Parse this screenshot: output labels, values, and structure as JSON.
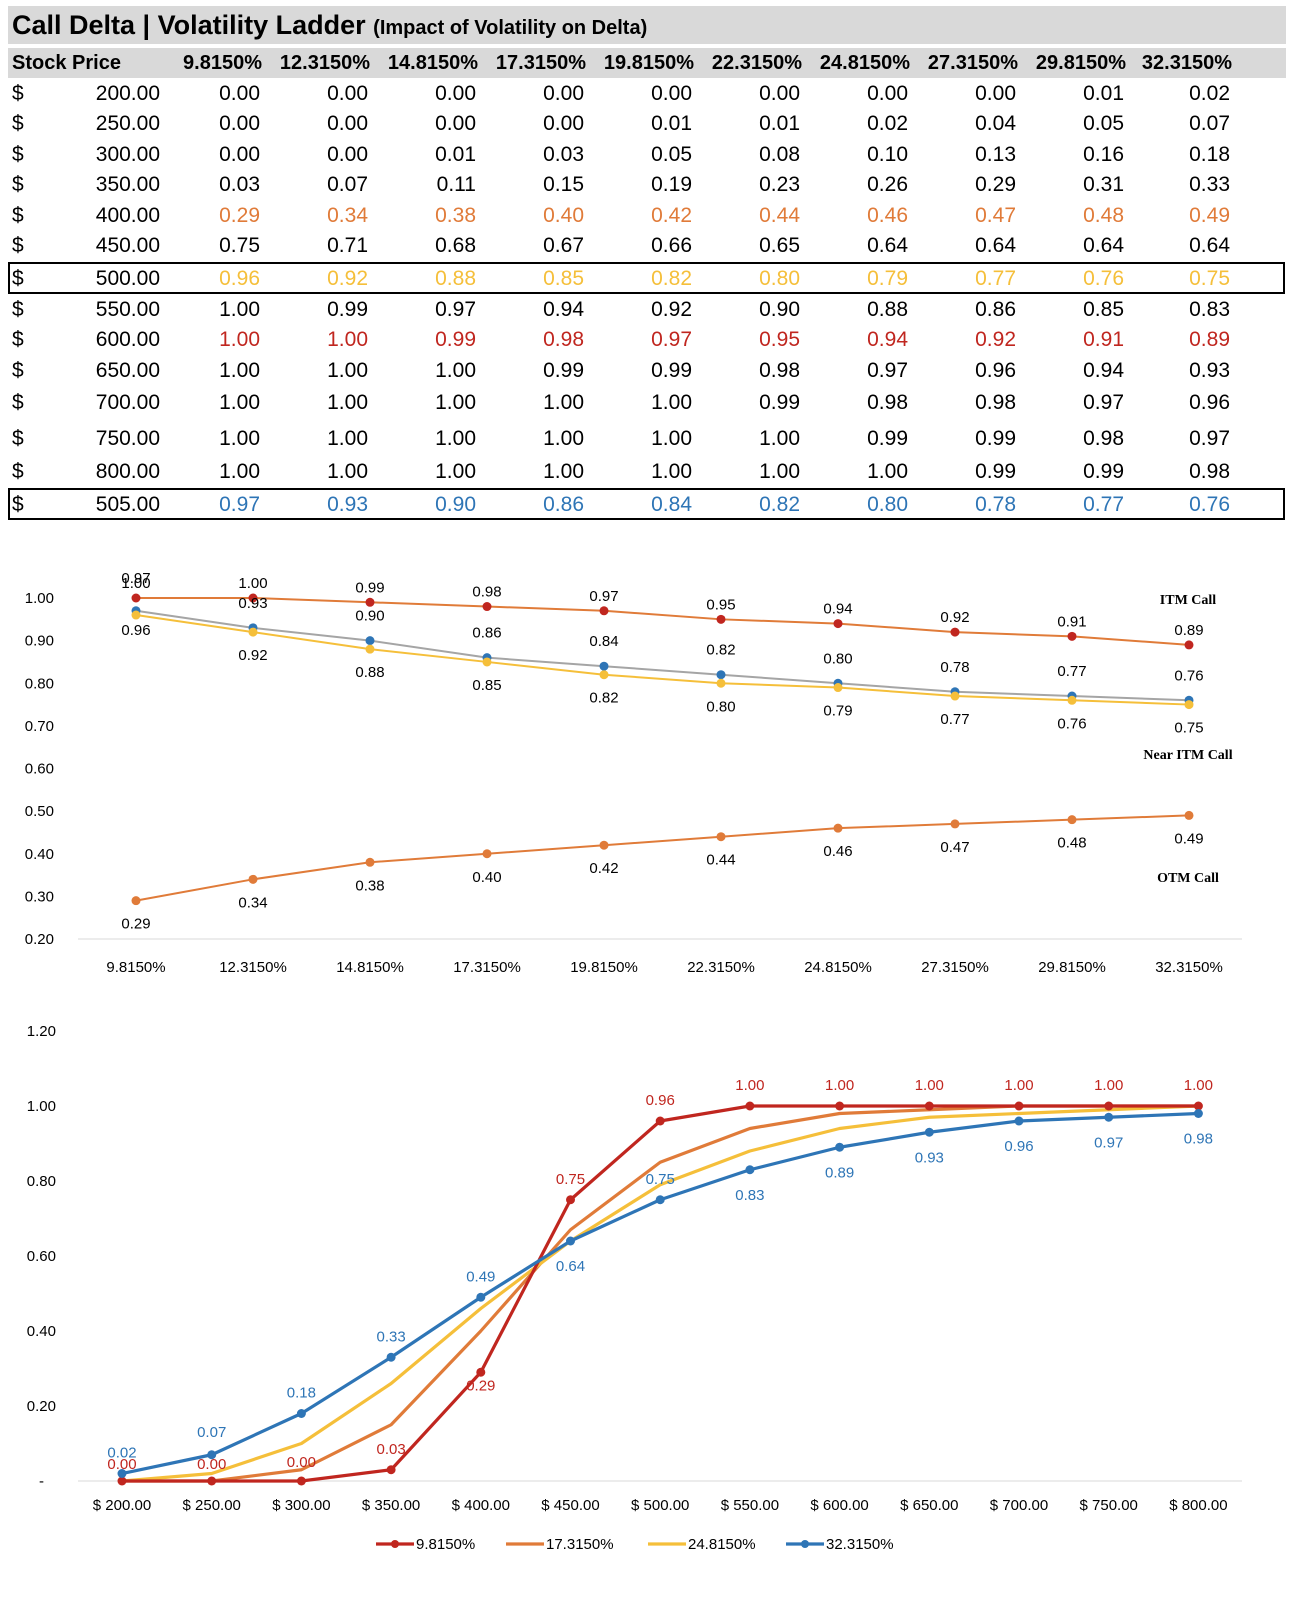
{
  "table": {
    "title": "Call Delta | Volatility Ladder",
    "subtitle": "(Impact of Volatility on Delta)",
    "col_header": "Stock Price",
    "currency": "$",
    "vol_headers": [
      "9.8150%",
      "12.3150%",
      "14.8150%",
      "17.3150%",
      "19.8150%",
      "22.3150%",
      "24.8150%",
      "27.3150%",
      "29.8150%",
      "32.3150%"
    ],
    "rows": [
      {
        "price": "200.00",
        "values": [
          "0.00",
          "0.00",
          "0.00",
          "0.00",
          "0.00",
          "0.00",
          "0.00",
          "0.00",
          "0.01",
          "0.02"
        ],
        "color": "#000000"
      },
      {
        "price": "250.00",
        "values": [
          "0.00",
          "0.00",
          "0.00",
          "0.00",
          "0.01",
          "0.01",
          "0.02",
          "0.04",
          "0.05",
          "0.07"
        ],
        "color": "#000000"
      },
      {
        "price": "300.00",
        "values": [
          "0.00",
          "0.00",
          "0.01",
          "0.03",
          "0.05",
          "0.08",
          "0.10",
          "0.13",
          "0.16",
          "0.18"
        ],
        "color": "#000000"
      },
      {
        "price": "350.00",
        "values": [
          "0.03",
          "0.07",
          "0.11",
          "0.15",
          "0.19",
          "0.23",
          "0.26",
          "0.29",
          "0.31",
          "0.33"
        ],
        "color": "#000000"
      },
      {
        "price": "400.00",
        "values": [
          "0.29",
          "0.34",
          "0.38",
          "0.40",
          "0.42",
          "0.44",
          "0.46",
          "0.47",
          "0.48",
          "0.49"
        ],
        "color": "#e07b39"
      },
      {
        "price": "450.00",
        "values": [
          "0.75",
          "0.71",
          "0.68",
          "0.67",
          "0.66",
          "0.65",
          "0.64",
          "0.64",
          "0.64",
          "0.64"
        ],
        "color": "#000000"
      },
      {
        "price": "500.00",
        "values": [
          "0.96",
          "0.92",
          "0.88",
          "0.85",
          "0.82",
          "0.80",
          "0.79",
          "0.77",
          "0.76",
          "0.75"
        ],
        "color": "#f5bf3a"
      },
      {
        "price": "550.00",
        "values": [
          "1.00",
          "0.99",
          "0.97",
          "0.94",
          "0.92",
          "0.90",
          "0.88",
          "0.86",
          "0.85",
          "0.83"
        ],
        "color": "#000000"
      },
      {
        "price": "600.00",
        "values": [
          "1.00",
          "1.00",
          "0.99",
          "0.98",
          "0.97",
          "0.95",
          "0.94",
          "0.92",
          "0.91",
          "0.89"
        ],
        "color": "#c0261f"
      },
      {
        "price": "650.00",
        "values": [
          "1.00",
          "1.00",
          "1.00",
          "0.99",
          "0.99",
          "0.98",
          "0.97",
          "0.96",
          "0.94",
          "0.93"
        ],
        "color": "#000000"
      },
      {
        "price": "700.00",
        "values": [
          "1.00",
          "1.00",
          "1.00",
          "1.00",
          "1.00",
          "0.99",
          "0.98",
          "0.98",
          "0.97",
          "0.96"
        ],
        "color": "#000000"
      },
      {
        "price": "750.00",
        "values": [
          "1.00",
          "1.00",
          "1.00",
          "1.00",
          "1.00",
          "1.00",
          "0.99",
          "0.99",
          "0.98",
          "0.97"
        ],
        "color": "#000000"
      },
      {
        "price": "800.00",
        "values": [
          "1.00",
          "1.00",
          "1.00",
          "1.00",
          "1.00",
          "1.00",
          "1.00",
          "0.99",
          "0.99",
          "0.98"
        ],
        "color": "#000000"
      },
      {
        "price": "505.00",
        "values": [
          "0.97",
          "0.93",
          "0.90",
          "0.86",
          "0.84",
          "0.82",
          "0.80",
          "0.78",
          "0.77",
          "0.76"
        ],
        "color": "#2e75b6"
      }
    ]
  },
  "chart_data": [
    {
      "type": "line",
      "x": [
        "9.8150%",
        "12.3150%",
        "14.8150%",
        "17.3150%",
        "19.8150%",
        "22.3150%",
        "24.8150%",
        "27.3150%",
        "29.8150%",
        "32.3150%"
      ],
      "y_ticks": [
        "1.00",
        "0.90",
        "0.80",
        "0.70",
        "0.60",
        "0.50",
        "0.40",
        "0.30",
        "0.20"
      ],
      "ylim": [
        0.2,
        1.0
      ],
      "grid": false,
      "annotations": [
        "ITM Call",
        "Near ITM Call",
        "OTM Call"
      ],
      "series": [
        {
          "name": "",
          "color": "#c0261f",
          "line": "#e07b39",
          "values": [
            1.0,
            1.0,
            0.99,
            0.98,
            0.97,
            0.95,
            0.94,
            0.92,
            0.91,
            0.89
          ],
          "labels": [
            "1.00",
            "1.00",
            "0.99",
            "0.98",
            "0.97",
            "0.95",
            "0.94",
            "0.92",
            "0.91",
            "0.89"
          ]
        },
        {
          "name": "",
          "color": "#2e75b6",
          "line": "#a5a5a5",
          "values": [
            0.97,
            0.93,
            0.9,
            0.86,
            0.84,
            0.82,
            0.8,
            0.78,
            0.77,
            0.76
          ],
          "labels": [
            "0.97",
            "0.93",
            "0.90",
            "0.86",
            "0.84",
            "0.82",
            "0.80",
            "0.78",
            "0.77",
            "0.76"
          ]
        },
        {
          "name": "",
          "color": "#f5bf3a",
          "line": "#f5bf3a",
          "values": [
            0.96,
            0.92,
            0.88,
            0.85,
            0.82,
            0.8,
            0.79,
            0.77,
            0.76,
            0.75
          ],
          "labels": [
            "0.96",
            "0.92",
            "0.88",
            "0.85",
            "0.82",
            "0.80",
            "0.79",
            "0.77",
            "0.76",
            "0.75"
          ]
        },
        {
          "name": "",
          "color": "#e07b39",
          "line": "#e07b39",
          "values": [
            0.29,
            0.34,
            0.38,
            0.4,
            0.42,
            0.44,
            0.46,
            0.47,
            0.48,
            0.49
          ],
          "labels": [
            "0.29",
            "0.34",
            "0.38",
            "0.40",
            "0.42",
            "0.44",
            "0.46",
            "0.47",
            "0.48",
            "0.49"
          ]
        }
      ]
    },
    {
      "type": "line",
      "x": [
        "$ 200.00",
        "$ 250.00",
        "$ 300.00",
        "$ 350.00",
        "$ 400.00",
        "$ 450.00",
        "$ 500.00",
        "$ 550.00",
        "$ 600.00",
        "$ 650.00",
        "$ 700.00",
        "$ 750.00",
        "$ 800.00"
      ],
      "y_ticks": [
        "1.20",
        "1.00",
        "0.80",
        "0.60",
        "0.40",
        "0.20",
        "-"
      ],
      "ylim": [
        0,
        1.2
      ],
      "grid": false,
      "legend": "bottom",
      "series": [
        {
          "name": "9.8150%",
          "color": "#c0261f",
          "markers": true,
          "values": [
            0.0,
            0.0,
            0.0,
            0.03,
            0.29,
            0.75,
            0.96,
            1.0,
            1.0,
            1.0,
            1.0,
            1.0,
            1.0
          ],
          "labels": [
            "0.00",
            "0.00",
            "0.00",
            "0.03",
            "0.29",
            "0.75",
            "0.96",
            "1.00",
            "1.00",
            "1.00",
            "1.00",
            "1.00",
            "1.00"
          ]
        },
        {
          "name": "17.3150%",
          "color": "#e07b39",
          "markers": false,
          "values": [
            0.0,
            0.0,
            0.03,
            0.15,
            0.4,
            0.67,
            0.85,
            0.94,
            0.98,
            0.99,
            1.0,
            1.0,
            1.0
          ]
        },
        {
          "name": "24.8150%",
          "color": "#f5bf3a",
          "markers": false,
          "values": [
            0.0,
            0.02,
            0.1,
            0.26,
            0.46,
            0.64,
            0.79,
            0.88,
            0.94,
            0.97,
            0.98,
            0.99,
            1.0
          ]
        },
        {
          "name": "32.3150%",
          "color": "#2e75b6",
          "markers": true,
          "values": [
            0.02,
            0.07,
            0.18,
            0.33,
            0.49,
            0.64,
            0.75,
            0.83,
            0.89,
            0.93,
            0.96,
            0.97,
            0.98
          ],
          "labels": [
            "0.02",
            "0.07",
            "0.18",
            "0.33",
            "0.49",
            "0.64",
            "0.75",
            "0.83",
            "0.89",
            "0.93",
            "0.96",
            "0.97",
            "0.98"
          ]
        }
      ]
    }
  ]
}
